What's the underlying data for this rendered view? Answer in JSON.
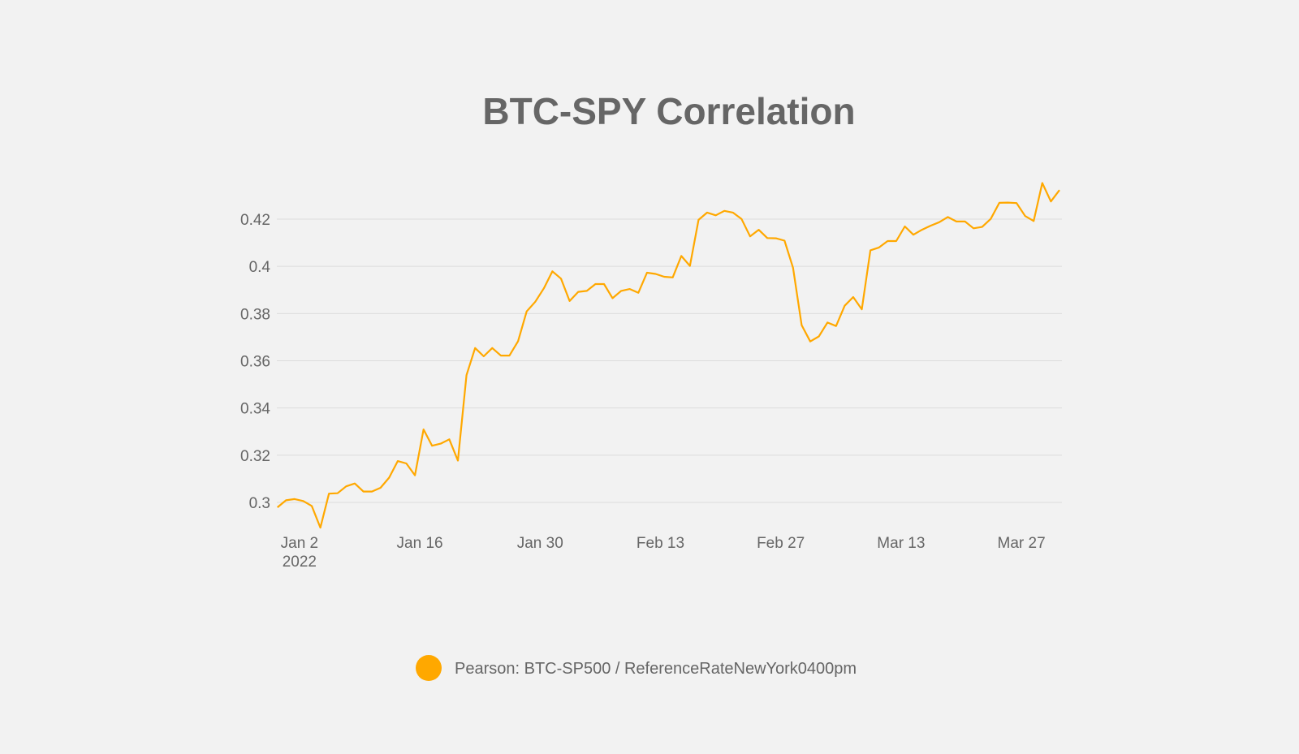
{
  "chart_data": {
    "type": "line",
    "title": "BTC-SPY Correlation",
    "xlabel": "",
    "ylabel": "",
    "ylim": [
      0.29,
      0.44
    ],
    "grid": true,
    "legend_position": "bottom-center",
    "y_ticks": [
      "0.3",
      "0.32",
      "0.34",
      "0.36",
      "0.38",
      "0.4",
      "0.42"
    ],
    "x_ticks": [
      {
        "date": "2022-01-02",
        "label": "Jan 2",
        "sublabel": "2022"
      },
      {
        "date": "2022-01-16",
        "label": "Jan 16"
      },
      {
        "date": "2022-01-30",
        "label": "Jan 30"
      },
      {
        "date": "2022-02-13",
        "label": "Feb 13"
      },
      {
        "date": "2022-02-27",
        "label": "Feb 27"
      },
      {
        "date": "2022-03-13",
        "label": "Mar 13"
      },
      {
        "date": "2022-03-27",
        "label": "Mar 27"
      }
    ],
    "x": [
      "2021-12-31",
      "2022-01-01",
      "2022-01-02",
      "2022-01-03",
      "2022-01-04",
      "2022-01-05",
      "2022-01-06",
      "2022-01-07",
      "2022-01-08",
      "2022-01-09",
      "2022-01-10",
      "2022-01-11",
      "2022-01-12",
      "2022-01-13",
      "2022-01-14",
      "2022-01-15",
      "2022-01-16",
      "2022-01-17",
      "2022-01-18",
      "2022-01-19",
      "2022-01-20",
      "2022-01-21",
      "2022-01-22",
      "2022-01-23",
      "2022-01-24",
      "2022-01-25",
      "2022-01-26",
      "2022-01-27",
      "2022-01-28",
      "2022-01-29",
      "2022-01-30",
      "2022-01-31",
      "2022-02-01",
      "2022-02-02",
      "2022-02-03",
      "2022-02-04",
      "2022-02-05",
      "2022-02-06",
      "2022-02-07",
      "2022-02-08",
      "2022-02-09",
      "2022-02-10",
      "2022-02-11",
      "2022-02-12",
      "2022-02-13",
      "2022-02-14",
      "2022-02-15",
      "2022-02-16",
      "2022-02-17",
      "2022-02-18",
      "2022-02-19",
      "2022-02-20",
      "2022-02-21",
      "2022-02-22",
      "2022-02-23",
      "2022-02-24",
      "2022-02-25",
      "2022-02-26",
      "2022-02-27",
      "2022-02-28",
      "2022-03-01",
      "2022-03-02",
      "2022-03-03",
      "2022-03-04",
      "2022-03-05",
      "2022-03-06",
      "2022-03-07",
      "2022-03-08",
      "2022-03-09",
      "2022-03-10",
      "2022-03-11",
      "2022-03-12",
      "2022-03-13",
      "2022-03-14",
      "2022-03-15",
      "2022-03-16",
      "2022-03-17",
      "2022-03-18",
      "2022-03-19",
      "2022-03-20",
      "2022-03-21",
      "2022-03-22",
      "2022-03-23",
      "2022-03-24",
      "2022-03-25",
      "2022-03-26",
      "2022-03-27",
      "2022-03-28",
      "2022-03-29",
      "2022-03-30",
      "2022-03-31",
      "2022-04-01"
    ],
    "series": [
      {
        "name": "Pearson: BTC-SP500 / ReferenceRateNewYork0400pm",
        "color": "#FFA800",
        "values": [
          0.2979,
          0.3009,
          0.3014,
          0.3006,
          0.2985,
          0.2893,
          0.3037,
          0.3039,
          0.3068,
          0.308,
          0.3046,
          0.3046,
          0.3062,
          0.3105,
          0.3175,
          0.3165,
          0.3115,
          0.3309,
          0.324,
          0.3249,
          0.3267,
          0.3177,
          0.3539,
          0.3654,
          0.3619,
          0.3654,
          0.3622,
          0.3622,
          0.3683,
          0.3809,
          0.385,
          0.3907,
          0.3979,
          0.3948,
          0.3853,
          0.3892,
          0.3896,
          0.3925,
          0.3925,
          0.3865,
          0.3896,
          0.3904,
          0.3888,
          0.3973,
          0.3968,
          0.3956,
          0.3953,
          0.4044,
          0.4002,
          0.4197,
          0.4228,
          0.4216,
          0.4235,
          0.4228,
          0.4201,
          0.4127,
          0.4155,
          0.412,
          0.4119,
          0.4109,
          0.3994,
          0.3751,
          0.3682,
          0.3703,
          0.3762,
          0.3747,
          0.3833,
          0.387,
          0.3818,
          0.4068,
          0.408,
          0.4107,
          0.4107,
          0.4169,
          0.4134,
          0.4155,
          0.4172,
          0.4187,
          0.4209,
          0.419,
          0.419,
          0.4161,
          0.4167,
          0.4201,
          0.4269,
          0.427,
          0.4268,
          0.4213,
          0.4192,
          0.4353,
          0.4275,
          0.4323
        ]
      }
    ]
  }
}
